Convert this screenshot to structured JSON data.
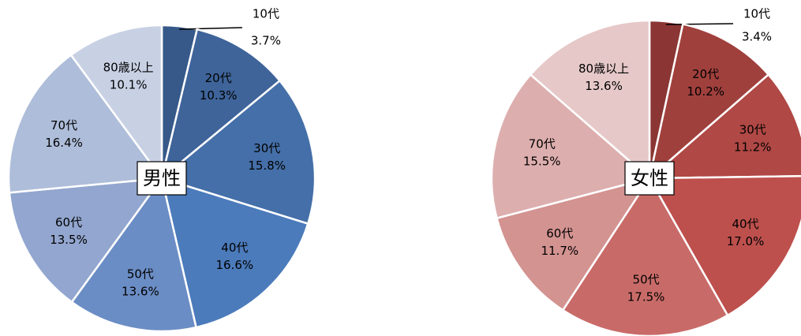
{
  "chart_data": [
    {
      "type": "pie",
      "title": "男性",
      "categories": [
        "10代",
        "20代",
        "30代",
        "40代",
        "50代",
        "60代",
        "70代",
        "80歳以上"
      ],
      "values": [
        3.7,
        10.3,
        15.8,
        16.6,
        13.6,
        13.5,
        16.4,
        10.1
      ],
      "value_labels": [
        "3.7%",
        "10.3%",
        "15.8%",
        "16.6%",
        "13.6%",
        "13.5%",
        "16.4%",
        "10.1%"
      ],
      "colors": [
        "#36598a",
        "#3e649a",
        "#456fa8",
        "#4b7bbb",
        "#6b8dc5",
        "#92a6cf",
        "#aebdd9",
        "#c8d1e4"
      ]
    },
    {
      "type": "pie",
      "title": "女性",
      "categories": [
        "10代",
        "20代",
        "30代",
        "40代",
        "50代",
        "60代",
        "70代",
        "80歳以上"
      ],
      "values": [
        3.4,
        10.2,
        11.2,
        17.0,
        17.5,
        11.7,
        15.5,
        13.6
      ],
      "value_labels": [
        "3.4%",
        "10.2%",
        "11.2%",
        "17.0%",
        "17.5%",
        "11.7%",
        "15.5%",
        "13.6%"
      ],
      "colors": [
        "#8b3634",
        "#a0403d",
        "#b04845",
        "#bd504d",
        "#c86b68",
        "#d39391",
        "#ddaeae",
        "#e6c8c8"
      ]
    }
  ]
}
